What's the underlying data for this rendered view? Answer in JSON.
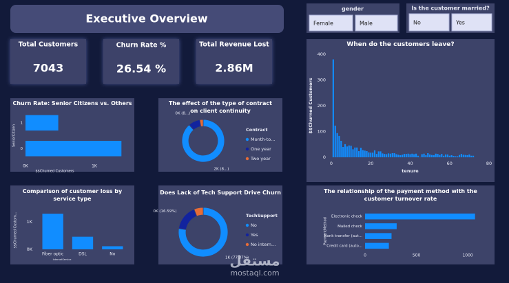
{
  "header": {
    "title": "Executive Overview"
  },
  "slicers": [
    {
      "title": "gender",
      "options": [
        "Female",
        "Male"
      ]
    },
    {
      "title": "Is the customer married?",
      "options": [
        "No",
        "Yes"
      ]
    }
  ],
  "cards": [
    {
      "label": "Total Customers",
      "value": "7043"
    },
    {
      "label": "Churn Rate %",
      "value": "26.54 %"
    },
    {
      "label": "Total Revenue Lost",
      "value": "2.86M"
    }
  ],
  "watermark": {
    "arabic": "مستقل",
    "latin": "mostaql.com"
  },
  "chart_data": [
    {
      "type": "bar",
      "title": "When do the customers leave?",
      "x_label": "tenure",
      "y_label": "$$Churned Customers",
      "color": "#118dff",
      "x": [
        1,
        2,
        3,
        4,
        5,
        6,
        7,
        8,
        9,
        10,
        11,
        12,
        13,
        14,
        15,
        16,
        17,
        18,
        19,
        20,
        21,
        22,
        23,
        24,
        25,
        26,
        27,
        28,
        29,
        30,
        31,
        32,
        33,
        34,
        35,
        36,
        37,
        38,
        39,
        40,
        41,
        42,
        43,
        44,
        45,
        46,
        47,
        48,
        49,
        50,
        51,
        52,
        53,
        54,
        55,
        56,
        57,
        58,
        59,
        60,
        61,
        62,
        63,
        64,
        65,
        66,
        67,
        68,
        69,
        70,
        71,
        72
      ],
      "values": [
        380,
        123,
        94,
        83,
        64,
        40,
        51,
        42,
        46,
        45,
        31,
        38,
        38,
        24,
        37,
        28,
        26,
        24,
        19,
        18,
        18,
        27,
        13,
        23,
        23,
        15,
        13,
        12,
        15,
        14,
        16,
        16,
        12,
        10,
        8,
        10,
        13,
        13,
        14,
        12,
        14,
        12,
        14,
        6,
        1,
        12,
        14,
        8,
        16,
        11,
        9,
        8,
        14,
        13,
        9,
        13,
        6,
        11,
        11,
        6,
        8,
        5,
        4,
        4,
        9,
        13,
        10,
        9,
        8,
        11,
        6,
        6
      ],
      "xlim": [
        0,
        80
      ],
      "xticks": [
        0,
        20,
        40,
        60,
        80
      ],
      "ylim": [
        0,
        400
      ],
      "yticks": [
        0,
        100,
        200,
        300,
        400
      ]
    },
    {
      "type": "bar",
      "orientation": "horizontal",
      "title": "Churn Rate: Senior Citizens vs. Others",
      "y_label": "SeniorCitizen",
      "x_label": "$$Churned Customers",
      "color": "#118dff",
      "categories": [
        "1",
        "0"
      ],
      "values": [
        476,
        1393
      ],
      "xlim": [
        0,
        1450
      ],
      "xticks": [
        {
          "value": 0,
          "label": "0K"
        },
        {
          "value": 1000,
          "label": "1K"
        }
      ]
    },
    {
      "type": "donut",
      "title": "The effect of the type of contract on client continuity",
      "legend_title": "Contract",
      "categories": [
        "Month-to...",
        "One year",
        "Two year"
      ],
      "values": [
        1655,
        166,
        48
      ],
      "value_labels": [
        "2K (8...)",
        "0K (8...)",
        null
      ],
      "colors": [
        "#118dff",
        "#12239e",
        "#e66c37"
      ]
    },
    {
      "type": "bar",
      "title": "Comparison of customer loss by service type",
      "y_label": "$$Churned Custom...",
      "x_label": "InternetService",
      "color": "#118dff",
      "categories": [
        "Fiber optic",
        "DSL",
        "No"
      ],
      "values": [
        1297,
        459,
        113
      ],
      "ylim": [
        0,
        1400
      ],
      "yticks": [
        {
          "value": 0,
          "label": "0K"
        },
        {
          "value": 1000,
          "label": "1K"
        }
      ]
    },
    {
      "type": "donut",
      "title": "Does Lack of Tech Support Drive Churn",
      "legend_title": "TechSupport",
      "categories": [
        "No",
        "Yes",
        "No intern..."
      ],
      "values": [
        1446,
        310,
        113
      ],
      "value_labels": [
        "1K (77.37%)",
        "0K (16.59%)",
        null
      ],
      "colors": [
        "#118dff",
        "#12239e",
        "#e66c37"
      ]
    },
    {
      "type": "bar",
      "orientation": "horizontal",
      "title": "The relationship of the payment method with the customer turnover rate",
      "y_label": "PaymentMethod",
      "color": "#118dff",
      "categories": [
        "Electronic check",
        "Mailed check",
        "Bank transfer (aut...",
        "Credit card (auto..."
      ],
      "values": [
        1071,
        308,
        258,
        232
      ],
      "xlim": [
        0,
        1100
      ],
      "xticks": [
        0,
        500,
        1000
      ]
    }
  ]
}
